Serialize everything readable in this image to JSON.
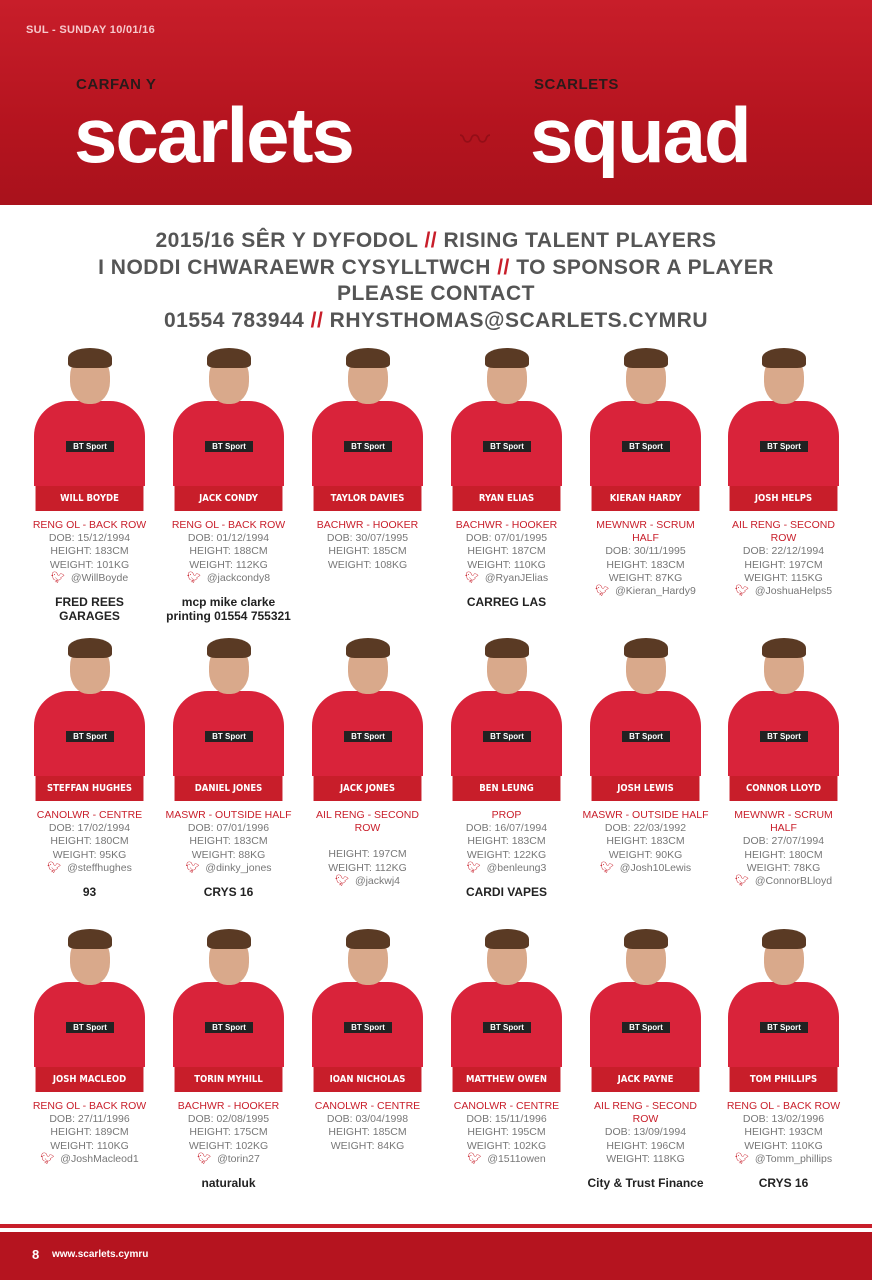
{
  "header": {
    "dateline": "SUL - SUNDAY 10/01/16",
    "left_sub": "CARFAN Y",
    "left_big": "scarlets",
    "right_sub": "SCARLETS",
    "right_big": "squad"
  },
  "intro": {
    "line1a": "2015/16 SÊR Y DYFODOL",
    "line1b": "RISING TALENT PLAYERS",
    "line2a": "I NODDI CHWARAEWR CYSYLLTWCH",
    "line2b": "TO SPONSOR A PLAYER",
    "line3": "PLEASE CONTACT",
    "line4a": "01554 783944",
    "line4b": "RHYSTHOMAS@SCARLETS.CYMRU",
    "sep": "//"
  },
  "jersey_text": "BT Sport",
  "players": [
    {
      "name": "WILL BOYDE",
      "pos": "RENG OL - BACK ROW",
      "dob": "DOB: 15/12/1994",
      "height": "HEIGHT: 183CM",
      "weight": "WEIGHT: 101KG",
      "twitter": "@WillBoyde",
      "sponsor": "FRED REES GARAGES"
    },
    {
      "name": "JACK CONDY",
      "pos": "RENG OL - BACK ROW",
      "dob": "DOB: 01/12/1994",
      "height": "HEIGHT: 188CM",
      "weight": "WEIGHT: 112KG",
      "twitter": "@jackcondy8",
      "sponsor": "mcp mike clarke printing 01554 755321"
    },
    {
      "name": "TAYLOR DAVIES",
      "pos": "BACHWR - HOOKER",
      "dob": "DOB: 30/07/1995",
      "height": "HEIGHT: 185CM",
      "weight": "WEIGHT: 108KG",
      "twitter": "",
      "sponsor": ""
    },
    {
      "name": "RYAN ELIAS",
      "pos": "BACHWR - HOOKER",
      "dob": "DOB: 07/01/1995",
      "height": "HEIGHT: 187CM",
      "weight": "WEIGHT: 110KG",
      "twitter": "@RyanJElias",
      "sponsor": "CARREG LAS"
    },
    {
      "name": "KIERAN HARDY",
      "pos": "MEWNWR - SCRUM HALF",
      "dob": "DOB: 30/11/1995",
      "height": "HEIGHT: 183CM",
      "weight": "WEIGHT: 87KG",
      "twitter": "@Kieran_Hardy9",
      "sponsor": ""
    },
    {
      "name": "JOSH HELPS",
      "pos": "AIL RENG - SECOND ROW",
      "dob": "DOB: 22/12/1994",
      "height": "HEIGHT: 197CM",
      "weight": "WEIGHT: 115KG",
      "twitter": "@JoshuaHelps5",
      "sponsor": ""
    },
    {
      "name": "STEFFAN HUGHES",
      "pos": "CANOLWR - CENTRE",
      "dob": "DOB: 17/02/1994",
      "height": "HEIGHT: 180CM",
      "weight": "WEIGHT: 95KG",
      "twitter": "@steffhughes",
      "sponsor": "93"
    },
    {
      "name": "DANIEL JONES",
      "pos": "MASWR - OUTSIDE HALF",
      "dob": "DOB: 07/01/1996",
      "height": "HEIGHT: 183CM",
      "weight": "WEIGHT: 88KG",
      "twitter": "@dinky_jones",
      "sponsor": "CRYS 16"
    },
    {
      "name": "JACK JONES",
      "pos": "AIL RENG - SECOND ROW",
      "dob": "",
      "height": "HEIGHT: 197CM",
      "weight": "WEIGHT: 112KG",
      "twitter": "@jackwj4",
      "sponsor": ""
    },
    {
      "name": "BEN LEUNG",
      "pos": "PROP",
      "dob": "DOB: 16/07/1994",
      "height": "HEIGHT: 183CM",
      "weight": "WEIGHT: 122KG",
      "twitter": "@benleung3",
      "sponsor": "CARDI VAPES"
    },
    {
      "name": "JOSH LEWIS",
      "pos": "MASWR - OUTSIDE HALF",
      "dob": "DOB: 22/03/1992",
      "height": "HEIGHT: 183CM",
      "weight": "WEIGHT: 90KG",
      "twitter": "@Josh10Lewis",
      "sponsor": ""
    },
    {
      "name": "CONNOR LLOYD",
      "pos": "MEWNWR - SCRUM HALF",
      "dob": "DOB: 27/07/1994",
      "height": "HEIGHT: 180CM",
      "weight": "WEIGHT: 78KG",
      "twitter": "@ConnorBLloyd",
      "sponsor": ""
    },
    {
      "name": "JOSH MACLEOD",
      "pos": "RENG OL - BACK ROW",
      "dob": "DOB: 27/11/1996",
      "height": "HEIGHT: 189CM",
      "weight": "WEIGHT: 110KG",
      "twitter": "@JoshMacleod1",
      "sponsor": ""
    },
    {
      "name": "TORIN MYHILL",
      "pos": "BACHWR - HOOKER",
      "dob": "DOB: 02/08/1995",
      "height": "HEIGHT: 175CM",
      "weight": "WEIGHT: 102KG",
      "twitter": "@torin27",
      "sponsor": "naturaluk"
    },
    {
      "name": "IOAN NICHOLAS",
      "pos": "CANOLWR - CENTRE",
      "dob": "DOB: 03/04/1998",
      "height": "HEIGHT: 185CM",
      "weight": "WEIGHT: 84KG",
      "twitter": "",
      "sponsor": ""
    },
    {
      "name": "MATTHEW OWEN",
      "pos": "CANOLWR - CENTRE",
      "dob": "DOB: 15/11/1996",
      "height": "HEIGHT: 195CM",
      "weight": "WEIGHT: 102KG",
      "twitter": "@1511owen",
      "sponsor": ""
    },
    {
      "name": "JACK PAYNE",
      "pos": "AIL RENG - SECOND ROW",
      "dob": "DOB: 13/09/1994",
      "height": "HEIGHT: 196CM",
      "weight": "WEIGHT: 118KG",
      "twitter": "",
      "sponsor": "City & Trust Finance"
    },
    {
      "name": "TOM PHILLIPS",
      "pos": "RENG OL - BACK ROW",
      "dob": "DOB: 13/02/1996",
      "height": "HEIGHT: 193CM",
      "weight": "WEIGHT: 110KG",
      "twitter": "@Tomm_phillips",
      "sponsor": "CRYS 16"
    }
  ],
  "footer": {
    "page": "8",
    "url": "www.scarlets.cymru"
  },
  "colors": {
    "brand": "#c81e2a"
  }
}
